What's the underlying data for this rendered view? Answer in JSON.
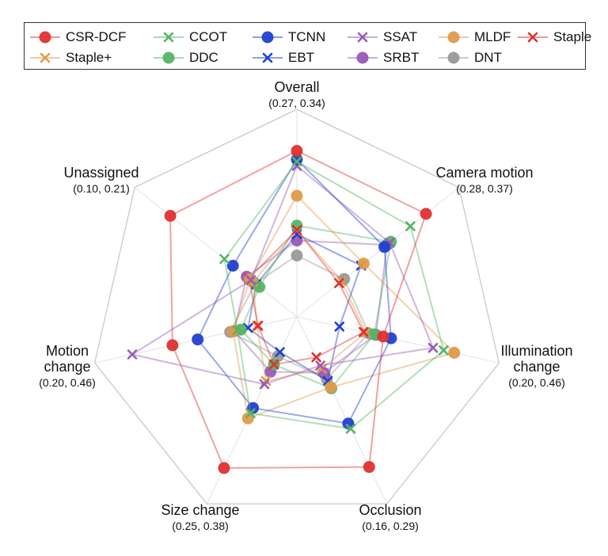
{
  "chart_data": {
    "type": "radar",
    "axes": [
      {
        "name": [
          "Overall"
        ],
        "range": "(0.27, 0.34)",
        "min": 0.27,
        "max": 0.34
      },
      {
        "name": [
          "Camera motion"
        ],
        "range": "(0.28, 0.37)",
        "min": 0.28,
        "max": 0.37
      },
      {
        "name": [
          "Illumination",
          "change"
        ],
        "range": "(0.20, 0.46)",
        "min": 0.2,
        "max": 0.46
      },
      {
        "name": [
          "Occlusion"
        ],
        "range": "(0.16, 0.29)",
        "min": 0.16,
        "max": 0.29
      },
      {
        "name": [
          "Size change"
        ],
        "range": "(0.25, 0.38)",
        "min": 0.25,
        "max": 0.38
      },
      {
        "name": [
          "Motion",
          "change"
        ],
        "range": "(0.20, 0.46)",
        "min": 0.2,
        "max": 0.46
      },
      {
        "name": [
          "Unassigned"
        ],
        "range": "(0.10, 0.21)",
        "min": 0.1,
        "max": 0.21
      }
    ],
    "legend_position": "top",
    "series": [
      {
        "name": "CSR-DCF",
        "color": "#e03030",
        "marker": "circle",
        "values": [
          0.338,
          0.367,
          0.318,
          0.287,
          0.378,
          0.386,
          0.204
        ]
      },
      {
        "name": "CCOT",
        "color": "#55b566",
        "marker": "x",
        "values": [
          0.333,
          0.355,
          0.426,
          0.25,
          0.325,
          0.27,
          0.153
        ]
      },
      {
        "name": "TCNN",
        "color": "#2040d0",
        "marker": "circle",
        "values": [
          0.334,
          0.335,
          0.332,
          0.245,
          0.32,
          0.341,
          0.145
        ]
      },
      {
        "name": "SSAT",
        "color": "#9a5ab8",
        "marker": "x",
        "values": [
          0.331,
          0.339,
          0.407,
          0.189,
          0.297,
          0.458,
          0.128
        ]
      },
      {
        "name": "MLDF",
        "color": "#e09b4a",
        "marker": "circle",
        "values": [
          0.317,
          0.319,
          0.445,
          0.21,
          0.33,
          0.278,
          0.129
        ]
      },
      {
        "name": "Staple",
        "color": "#e03030",
        "marker": "x",
        "values": [
          0.301,
          0.3,
          0.283,
          0.181,
          0.278,
          0.233,
          0.13
        ]
      },
      {
        "name": "Staple+",
        "color": "#e09b4a",
        "marker": "x",
        "values": [
          0.301,
          0.302,
          0.287,
          0.192,
          0.294,
          0.235,
          0.126
        ]
      },
      {
        "name": "DDC",
        "color": "#55b566",
        "marker": "circle",
        "values": [
          0.303,
          0.34,
          0.302,
          0.211,
          0.278,
          0.264,
          0.12
        ]
      },
      {
        "name": "EBT",
        "color": "#2040d0",
        "marker": "x",
        "values": [
          0.299,
          0.317,
          0.24,
          0.204,
          0.266,
          0.251,
          0.123
        ]
      },
      {
        "name": "SRBT",
        "color": "#9a5ab8",
        "marker": "circle",
        "values": [
          0.296,
          0.337,
          0.305,
          0.196,
          0.285,
          0.276,
          0.132
        ]
      },
      {
        "name": "DNT",
        "color": "#999999",
        "marker": "circle",
        "values": [
          0.289,
          0.304,
          0.292,
          0.202,
          0.27,
          0.283,
          0.124
        ]
      }
    ]
  }
}
